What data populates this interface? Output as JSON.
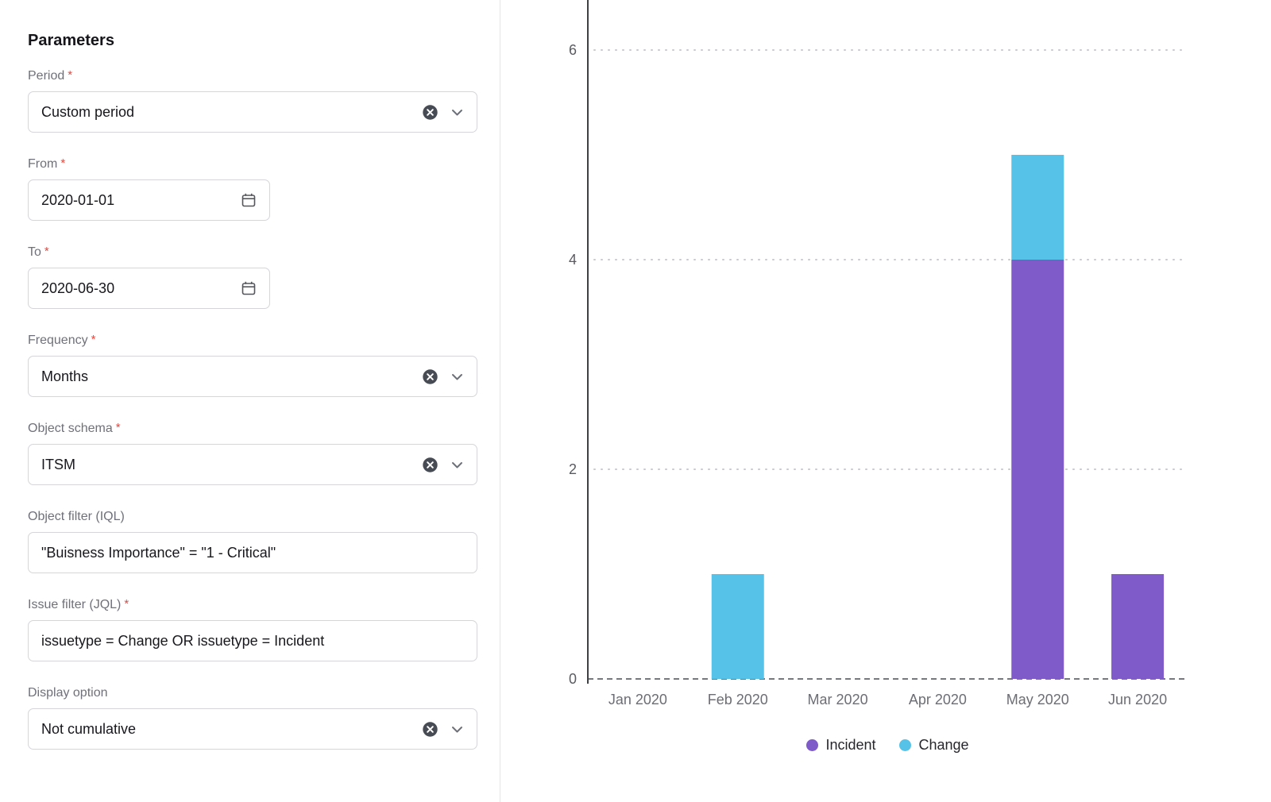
{
  "panel": {
    "title": "Parameters",
    "required_marker": "*",
    "fields": {
      "period": {
        "label": "Period",
        "required": true,
        "value": "Custom period"
      },
      "from": {
        "label": "From",
        "required": true,
        "value": "2020-01-01"
      },
      "to": {
        "label": "To",
        "required": true,
        "value": "2020-06-30"
      },
      "frequency": {
        "label": "Frequency",
        "required": true,
        "value": "Months"
      },
      "object_schema": {
        "label": "Object schema",
        "required": true,
        "value": "ITSM"
      },
      "object_filter": {
        "label": "Object filter (IQL)",
        "required": false,
        "value": "\"Buisness Importance\" = \"1 - Critical\""
      },
      "issue_filter": {
        "label": "Issue filter (JQL)",
        "required": true,
        "value": "issuetype = Change OR issuetype = Incident"
      },
      "display_option": {
        "label": "Display option",
        "required": false,
        "value": "Not cumulative"
      }
    }
  },
  "chart_data": {
    "type": "bar",
    "stacked": true,
    "categories": [
      "Jan 2020",
      "Feb 2020",
      "Mar 2020",
      "Apr 2020",
      "May 2020",
      "Jun 2020"
    ],
    "series": [
      {
        "name": "Incident",
        "color": "#7e5bc8",
        "values": [
          0,
          0,
          0,
          0,
          4,
          1
        ]
      },
      {
        "name": "Change",
        "color": "#57c2e8",
        "values": [
          0,
          1,
          0,
          0,
          1,
          0
        ]
      }
    ],
    "title": "",
    "xlabel": "",
    "ylabel": "",
    "ylim": [
      0,
      6
    ],
    "yticks": [
      0,
      2,
      4,
      6
    ],
    "grid": "horizontal-dotted",
    "legend_position": "bottom"
  }
}
